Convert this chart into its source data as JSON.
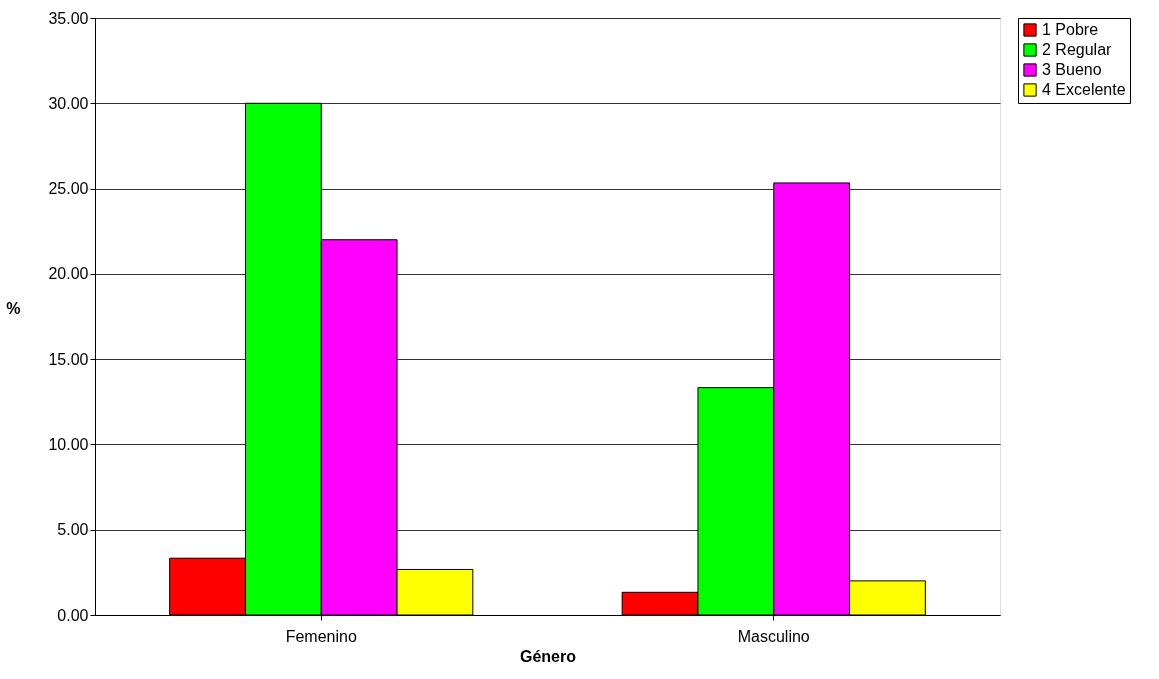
{
  "chart_data": {
    "type": "bar",
    "xlabel": "Género",
    "ylabel": "%",
    "categories": [
      "Femenino",
      "Masculino"
    ],
    "series": [
      {
        "name": "1 Pobre",
        "color": "#ff0000",
        "values": [
          3.33,
          1.33
        ]
      },
      {
        "name": "2 Regular",
        "color": "#00ff00",
        "values": [
          30.0,
          13.33
        ]
      },
      {
        "name": "3 Bueno",
        "color": "#ff00ff",
        "values": [
          22.0,
          25.33
        ]
      },
      {
        "name": "4 Excelente",
        "color": "#ffff00",
        "values": [
          2.67,
          2.0
        ]
      }
    ],
    "ylim": [
      0,
      35
    ],
    "yticks": [
      {
        "value": 0,
        "label": "0.00"
      },
      {
        "value": 5,
        "label": "5.00"
      },
      {
        "value": 10,
        "label": "10.00"
      },
      {
        "value": 15,
        "label": "15.00"
      },
      {
        "value": 20,
        "label": "20.00"
      },
      {
        "value": 25,
        "label": "25.00"
      },
      {
        "value": 30,
        "label": "30.00"
      },
      {
        "value": 35,
        "label": "35.00"
      }
    ],
    "grid": "y",
    "legend": "right"
  }
}
